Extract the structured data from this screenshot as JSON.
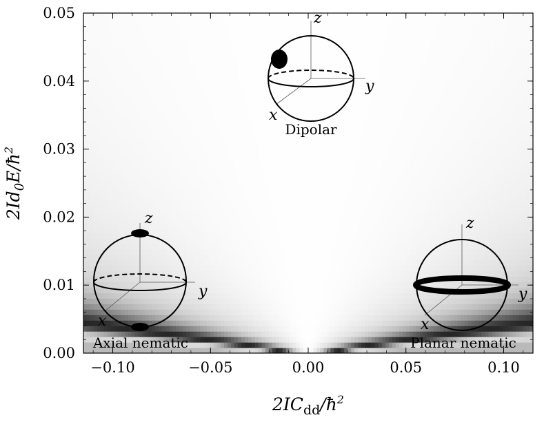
{
  "chart_data": {
    "type": "heatmap",
    "title": "",
    "xlabel": "2IC_dd/ħ²",
    "ylabel": "2Id₀E/ħ²",
    "xlim": [
      -0.115,
      0.115
    ],
    "ylim": [
      0.0,
      0.05
    ],
    "x_ticks": [
      "−0.10",
      "−0.05",
      "0.00",
      "0.05",
      "0.10"
    ],
    "x_tick_values": [
      -0.1,
      -0.05,
      0.0,
      0.05,
      0.1
    ],
    "y_ticks": [
      "0.00",
      "0.01",
      "0.02",
      "0.03",
      "0.04",
      "0.05"
    ],
    "y_tick_values": [
      0.0,
      0.01,
      0.02,
      0.03,
      0.04,
      0.05
    ],
    "colormap": "grayscale",
    "dark_bands_slope": 0.039,
    "regions": [
      {
        "label": "Dipolar",
        "x": 0.0,
        "y": 0.042
      },
      {
        "label": "Axial nematic",
        "x": -0.085,
        "y": 0.009
      },
      {
        "label": "Planar nematic",
        "x": 0.075,
        "y": 0.009
      }
    ],
    "inset_axes": {
      "x": "x",
      "y": "y",
      "z": "z"
    }
  }
}
